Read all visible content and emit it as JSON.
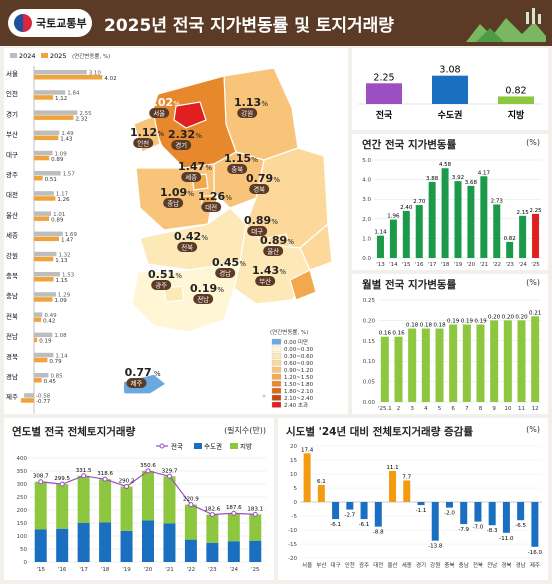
{
  "header": {
    "logo_text": "국토교통부",
    "title": "2025년 전국 지가변동률 및 토지거래량"
  },
  "colors": {
    "header_bg": "#5b3a26",
    "y2024": "#bdbdbd",
    "y2025": "#f0a33a",
    "green": "#8dc63f",
    "green_dark": "#1a9a4a",
    "red": "#e02020",
    "purple": "#9b4fc0",
    "blue": "#1b6fc0",
    "orange": "#f39c12"
  },
  "regional_bar": {
    "legend": [
      "2024",
      "2025"
    ],
    "unit": "(연간변동률, %)",
    "regions": [
      "서울",
      "인천",
      "경기",
      "부산",
      "대구",
      "광주",
      "대전",
      "울산",
      "세종",
      "강원",
      "충북",
      "충남",
      "전북",
      "전남",
      "경북",
      "경남",
      "제주"
    ],
    "v2024": [
      3.1,
      1.84,
      2.55,
      1.49,
      1.09,
      1.57,
      1.17,
      1.01,
      1.69,
      1.32,
      1.53,
      1.29,
      0.49,
      1.08,
      1.14,
      0.85,
      -0.58
    ],
    "v2025": [
      4.02,
      1.12,
      2.32,
      1.43,
      0.89,
      0.51,
      1.26,
      0.89,
      1.47,
      1.13,
      1.15,
      1.09,
      0.42,
      0.19,
      0.79,
      0.45,
      -0.77
    ],
    "labels2024": [
      "3.10",
      "1.84",
      "2.55",
      "1.49",
      "1.09",
      "1.57",
      "1.17",
      "1.01",
      "1.69",
      "1.32",
      "1.53",
      "1.29",
      "0.49",
      "1.08",
      "1.14",
      "0.85",
      "-0.58"
    ],
    "labels2025": [
      "4.02",
      "1.12",
      "2.32",
      "1.43",
      "0.89",
      "0.51",
      "1.26",
      "0.89",
      "1.47",
      "1.13",
      "1.15",
      "1.09",
      "0.42",
      "0.19",
      "0.79",
      "0.45",
      "-0.77"
    ]
  },
  "map": {
    "labels": [
      {
        "value": "4.02",
        "pct": "%",
        "tag": "서울",
        "hl": true
      },
      {
        "value": "1.13",
        "pct": "%",
        "tag": "강원",
        "hl": false
      },
      {
        "value": "1.12",
        "pct": "%",
        "tag": "인천",
        "hl": false
      },
      {
        "value": "2.32",
        "pct": "%",
        "tag": "경기",
        "hl": false
      },
      {
        "value": "1.15",
        "pct": "%",
        "tag": "충북",
        "hl": false
      },
      {
        "value": "1.47",
        "pct": "%",
        "tag": "세종",
        "hl": false
      },
      {
        "value": "0.79",
        "pct": "%",
        "tag": "경북",
        "hl": false
      },
      {
        "value": "1.09",
        "pct": "%",
        "tag": "충남",
        "hl": false
      },
      {
        "value": "1.26",
        "pct": "%",
        "tag": "대전",
        "hl": false
      },
      {
        "value": "0.89",
        "pct": "%",
        "tag": "대구",
        "hl": false
      },
      {
        "value": "0.42",
        "pct": "%",
        "tag": "전북",
        "hl": false
      },
      {
        "value": "0.89",
        "pct": "%",
        "tag": "울산",
        "hl": false
      },
      {
        "value": "0.45",
        "pct": "%",
        "tag": "경남",
        "hl": false
      },
      {
        "value": "1.43",
        "pct": "%",
        "tag": "부산",
        "hl": false
      },
      {
        "value": "0.51",
        "pct": "%",
        "tag": "광주",
        "hl": false
      },
      {
        "value": "0.19",
        "pct": "%",
        "tag": "전남",
        "hl": false
      },
      {
        "value": "-0.77",
        "pct": "%",
        "tag": "제주",
        "hl": false
      }
    ],
    "legend_title": "(연간변동률, %)",
    "legend_items": [
      "0.00 미만",
      "0.00~0.30",
      "0.30~0.60",
      "0.60~0.90",
      "0.90~1.20",
      "1.20~1.50",
      "1.50~1.80",
      "1.80~2.10",
      "2.10~2.40",
      "2.40 초과"
    ],
    "legend_colors": [
      "#6aa8e0",
      "#fff6d6",
      "#fde8b8",
      "#fcd89a",
      "#f8c47a",
      "#f2a94e",
      "#e8882c",
      "#d86a1c",
      "#c44a14",
      "#e02020"
    ]
  },
  "summary": {
    "items": [
      {
        "label": "전국",
        "value": "2.25",
        "v": 2.25,
        "color": "#9b4fc0"
      },
      {
        "label": "수도권",
        "value": "3.08",
        "v": 3.08,
        "color": "#1b6fc0"
      },
      {
        "label": "지방",
        "value": "0.82",
        "v": 0.82,
        "color": "#8dc63f"
      }
    ]
  },
  "annual_chart": {
    "title": "연간 전국 지가변동률",
    "unit": "(%)"
  },
  "monthly_chart": {
    "title": "월별 전국 지가변동률",
    "unit": "(%)"
  },
  "volume_chart": {
    "title": "연도별 전국 전체토지거래량",
    "unit": "(필지수(만))",
    "legend": [
      "전국",
      "수도권",
      "지방"
    ]
  },
  "change_chart": {
    "title": "시도별 '24년 대비 전체토지거래량 증감률",
    "unit": "(%)"
  },
  "chart_data": [
    {
      "type": "bar",
      "title": "",
      "series": [
        {
          "name": "2024",
          "values": [
            3.1,
            1.84,
            2.55,
            1.49,
            1.09,
            1.57,
            1.17,
            1.01,
            1.69,
            1.32,
            1.53,
            1.29,
            0.49,
            1.08,
            1.14,
            0.85,
            -0.58
          ]
        },
        {
          "name": "2025",
          "values": [
            4.02,
            1.12,
            2.32,
            1.43,
            0.89,
            0.51,
            1.26,
            0.89,
            1.47,
            1.13,
            1.15,
            1.09,
            0.42,
            0.19,
            0.79,
            0.45,
            -0.77
          ]
        }
      ],
      "categories": [
        "서울",
        "인천",
        "경기",
        "부산",
        "대구",
        "광주",
        "대전",
        "울산",
        "세종",
        "강원",
        "충북",
        "충남",
        "전북",
        "전남",
        "경북",
        "경남",
        "제주"
      ],
      "ylabel": "(연간변동률, %)"
    },
    {
      "type": "bar",
      "categories": [
        "전국",
        "수도권",
        "지방"
      ],
      "values": [
        2.25,
        3.08,
        0.82
      ]
    },
    {
      "type": "bar",
      "title": "연간 전국 지가변동률",
      "categories": [
        "'13",
        "'14",
        "'15",
        "'16",
        "'17",
        "'18",
        "'19",
        "'20",
        "'21",
        "'22",
        "'23",
        "'24",
        "'25"
      ],
      "values": [
        1.14,
        1.96,
        2.4,
        2.7,
        3.88,
        4.58,
        3.92,
        3.68,
        4.17,
        2.73,
        0.82,
        2.15,
        2.25
      ],
      "ylim": [
        0,
        5.0
      ],
      "yticks": [
        "0.0",
        "1.0",
        "2.0",
        "3.0",
        "4.0",
        "5.0"
      ]
    },
    {
      "type": "bar",
      "title": "월별 전국 지가변동률",
      "categories": [
        "'25.1",
        "2",
        "3",
        "4",
        "5",
        "6",
        "7",
        "8",
        "9",
        "10",
        "11",
        "12"
      ],
      "values": [
        0.16,
        0.16,
        0.18,
        0.18,
        0.18,
        0.19,
        0.19,
        0.19,
        0.2,
        0.2,
        0.2,
        0.21
      ],
      "ylim": [
        0,
        0.25
      ],
      "yticks": [
        "0.00",
        "0.05",
        "0.10",
        "0.15",
        "0.20",
        "0.25"
      ]
    },
    {
      "type": "bar",
      "title": "연도별 전국 전체토지거래량",
      "categories": [
        "'15",
        "'16",
        "'17",
        "'18",
        "'19",
        "'20",
        "'21",
        "'22",
        "'23",
        "'24",
        "'25"
      ],
      "series": [
        {
          "name": "전국",
          "values": [
            308.7,
            299.5,
            331.5,
            318.6,
            290.2,
            350.6,
            329.7,
            220.9,
            182.6,
            187.6,
            183.1
          ]
        },
        {
          "name": "수도권",
          "values": [
            125,
            128,
            150,
            152,
            120,
            160,
            148,
            86,
            74,
            80,
            82
          ]
        },
        {
          "name": "지방",
          "values": [
            183.7,
            171.5,
            181.5,
            166.6,
            170.2,
            190.6,
            181.7,
            134.9,
            108.6,
            107.6,
            101.1
          ]
        }
      ],
      "ylim": [
        0,
        400
      ],
      "yticks": [
        "0",
        "50",
        "100",
        "150",
        "200",
        "250",
        "300",
        "350",
        "400"
      ]
    },
    {
      "type": "bar",
      "title": "시도별 '24년 대비 전체토지거래량 증감률",
      "categories": [
        "서울",
        "부산",
        "대구",
        "인천",
        "광주",
        "대전",
        "울산",
        "세종",
        "경기",
        "강원",
        "충북",
        "충남",
        "전북",
        "전남",
        "경북",
        "경남",
        "제주"
      ],
      "values": [
        17.4,
        6.1,
        -6.1,
        -2.7,
        -6.1,
        -8.8,
        11.1,
        7.7,
        -1.1,
        -13.8,
        -2.0,
        -7.9,
        -7.0,
        -8.3,
        -11.0,
        -6.5,
        -16.0
      ],
      "ylim": [
        -20,
        20
      ],
      "yticks": [
        "-20",
        "-15",
        "-10",
        "-5",
        "0",
        "5",
        "10",
        "15",
        "20"
      ]
    }
  ]
}
